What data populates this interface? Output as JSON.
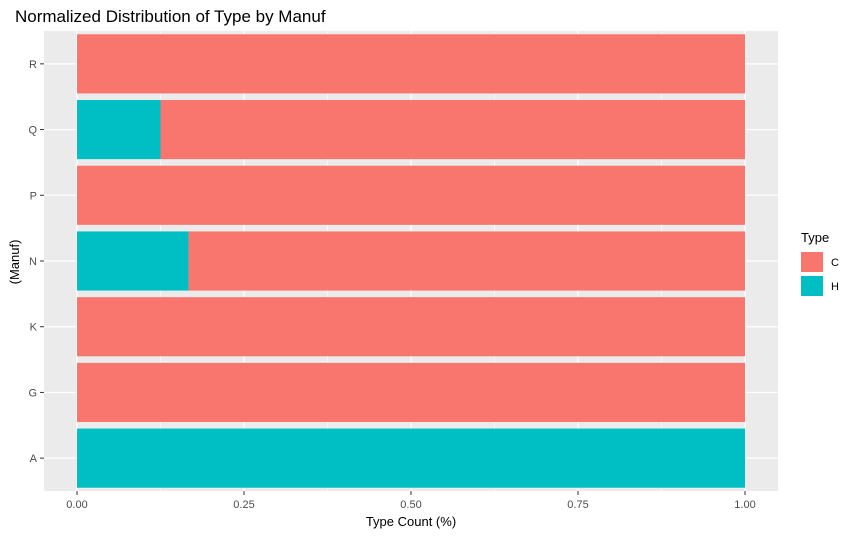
{
  "chart_data": {
    "type": "bar",
    "orientation": "horizontal",
    "stacked": true,
    "normalized": true,
    "title": "Normalized Distribution of Type by Manuf",
    "xlabel": "Type Count (%)",
    "ylabel": "(Manuf)",
    "xlim": [
      0,
      1
    ],
    "xticks": [
      "0.00",
      "0.25",
      "0.50",
      "0.75",
      "1.00"
    ],
    "categories": [
      "A",
      "G",
      "K",
      "N",
      "P",
      "Q",
      "R"
    ],
    "series": [
      {
        "name": "H",
        "color": "#00BFC4",
        "values": [
          1.0,
          0.0,
          0.0,
          0.167,
          0.0,
          0.125,
          0.0
        ]
      },
      {
        "name": "C",
        "color": "#F8766D",
        "values": [
          0.0,
          1.0,
          1.0,
          0.833,
          1.0,
          0.875,
          1.0
        ]
      }
    ],
    "grid": true,
    "legend": {
      "title": "Type",
      "position": "right",
      "entries": [
        {
          "label": "C",
          "color": "#F8766D"
        },
        {
          "label": "H",
          "color": "#00BFC4"
        }
      ]
    },
    "panel_background": "#EBEBEB",
    "grid_color": "#FFFFFF"
  }
}
